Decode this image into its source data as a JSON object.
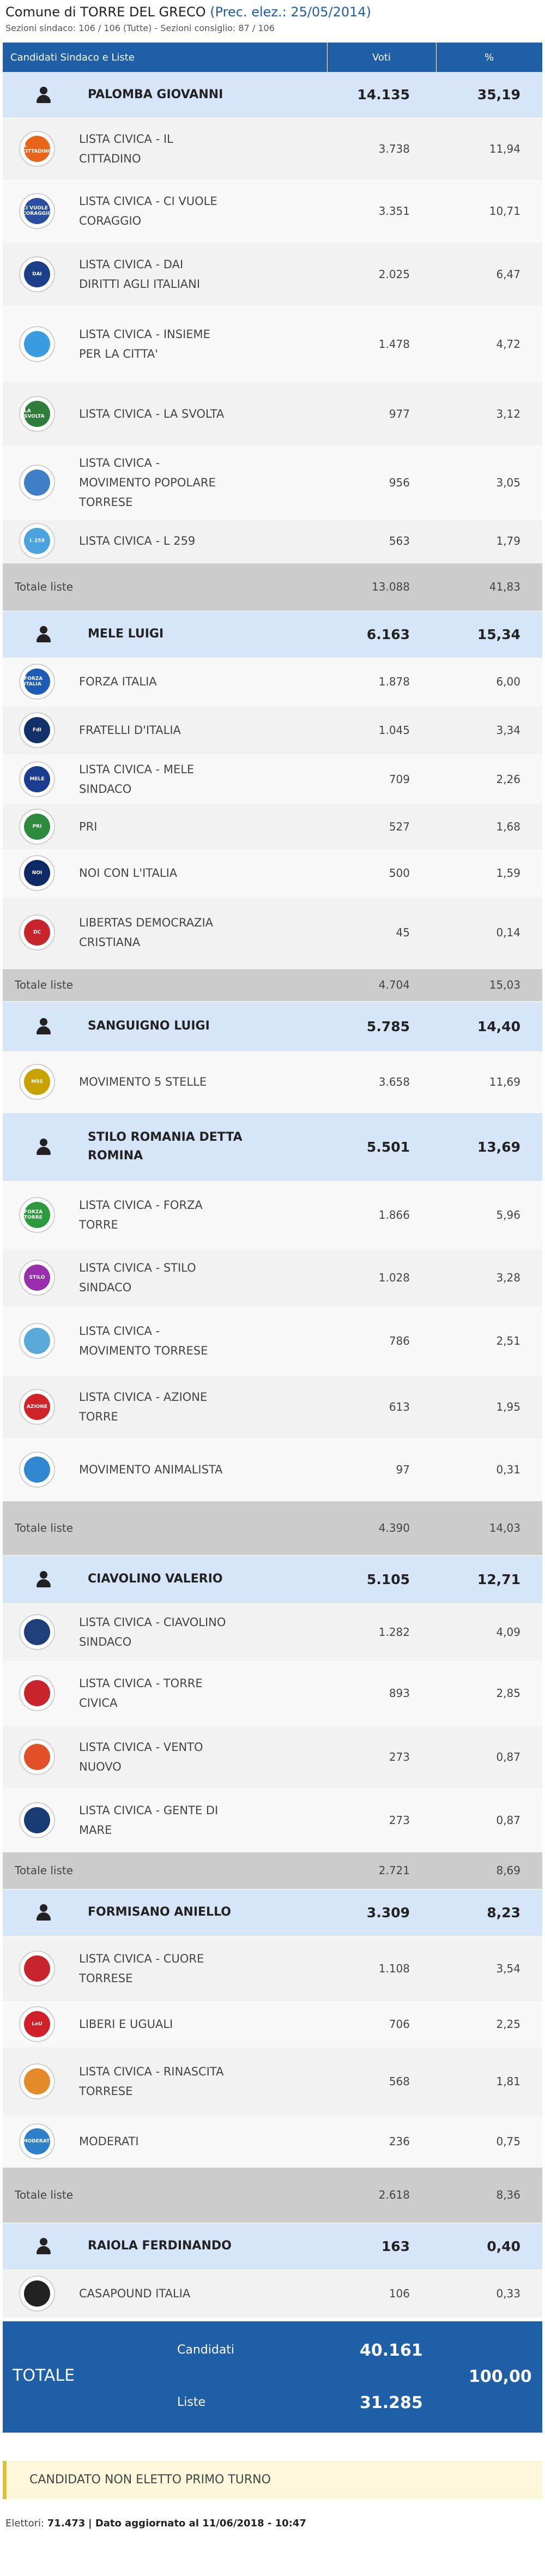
{
  "header": {
    "title_prefix": "Comune di TORRE DEL GRECO",
    "prec_link": "(Prec. elez.: 25/05/2014)",
    "sezioni": "Sezioni sindaco: 106 / 106 (Tutte) - Sezioni consiglio: 87 / 106"
  },
  "table": {
    "col_candidati": "Candidati Sindaco e Liste",
    "col_voti": "Voti",
    "col_pct": "%"
  },
  "groups": [
    {
      "candidate": {
        "name": "PALOMBA GIOVANNI",
        "votes": "14.135",
        "pct": "35,19"
      },
      "lists": [
        {
          "name": "LISTA CIVICA - IL CITTADINO",
          "votes": "3.738",
          "pct": "11,94",
          "logo_text": "IL CITTADINO",
          "color": "#e8641b"
        },
        {
          "name": "LISTA CIVICA - CI VUOLE CORAGGIO",
          "votes": "3.351",
          "pct": "10,71",
          "logo_text": "CI VUOLE CORAGGIO",
          "color": "#2a4fa0"
        },
        {
          "name": "LISTA CIVICA - DAI DIRITTI AGLI ITALIANI",
          "votes": "2.025",
          "pct": "6,47",
          "logo_text": "DAI",
          "color": "#1c3f8a"
        },
        {
          "name": "LISTA CIVICA - INSIEME PER LA CITTA'",
          "votes": "1.478",
          "pct": "4,72",
          "logo_text": "",
          "color": "#3a9be0"
        },
        {
          "name": "LISTA CIVICA - LA SVOLTA",
          "votes": "977",
          "pct": "3,12",
          "logo_text": "LA SVOLTA",
          "color": "#2f7d3a"
        },
        {
          "name": "LISTA CIVICA - MOVIMENTO POPOLARE TORRESE",
          "votes": "956",
          "pct": "3,05",
          "logo_text": "",
          "color": "#3f7fc8"
        },
        {
          "name": "LISTA CIVICA - L 259",
          "votes": "563",
          "pct": "1,79",
          "logo_text": "L 259",
          "color": "#4aa3df"
        }
      ],
      "total": {
        "label": "Totale liste",
        "votes": "13.088",
        "pct": "41,83"
      }
    },
    {
      "candidate": {
        "name": "MELE LUIGI",
        "votes": "6.163",
        "pct": "15,34"
      },
      "lists": [
        {
          "name": "FORZA ITALIA",
          "votes": "1.878",
          "pct": "6,00",
          "logo_text": "FORZA ITALIA",
          "color": "#1d5bb5"
        },
        {
          "name": "FRATELLI D'ITALIA",
          "votes": "1.045",
          "pct": "3,34",
          "logo_text": "FdI",
          "color": "#13306b"
        },
        {
          "name": "LISTA CIVICA - MELE SINDACO",
          "votes": "709",
          "pct": "2,26",
          "logo_text": "MELE",
          "color": "#1a3d8f"
        },
        {
          "name": "PRI",
          "votes": "527",
          "pct": "1,68",
          "logo_text": "PRI",
          "color": "#2e8b3e"
        },
        {
          "name": "NOI CON L'ITALIA",
          "votes": "500",
          "pct": "1,59",
          "logo_text": "NOI",
          "color": "#0d2a66"
        },
        {
          "name": "LIBERTAS DEMOCRAZIA CRISTIANA",
          "votes": "45",
          "pct": "0,14",
          "logo_text": "DC",
          "color": "#c8242b"
        }
      ],
      "total": {
        "label": "Totale liste",
        "votes": "4.704",
        "pct": "15,03"
      }
    },
    {
      "candidate": {
        "name": "SANGUIGNO LUIGI",
        "votes": "5.785",
        "pct": "14,40"
      },
      "lists": [
        {
          "name": "MOVIMENTO 5 STELLE",
          "votes": "3.658",
          "pct": "11,69",
          "logo_text": "M5S",
          "color": "#c9a100"
        }
      ],
      "total": null
    },
    {
      "candidate": {
        "name": "STILO ROMANIA DETTA ROMINA",
        "votes": "5.501",
        "pct": "13,69"
      },
      "lists": [
        {
          "name": "LISTA CIVICA - FORZA TORRE",
          "votes": "1.866",
          "pct": "5,96",
          "logo_text": "FORZA TORRE",
          "color": "#2b9a3c"
        },
        {
          "name": "LISTA CIVICA - STILO SINDACO",
          "votes": "1.028",
          "pct": "3,28",
          "logo_text": "STILO",
          "color": "#9a2fae"
        },
        {
          "name": "LISTA CIVICA - MOVIMENTO TORRESE",
          "votes": "786",
          "pct": "2,51",
          "logo_text": "",
          "color": "#58a8d8"
        },
        {
          "name": "LISTA CIVICA - AZIONE TORRE",
          "votes": "613",
          "pct": "1,95",
          "logo_text": "AZIONE",
          "color": "#d1232a"
        },
        {
          "name": "MOVIMENTO ANIMALISTA",
          "votes": "97",
          "pct": "0,31",
          "logo_text": "",
          "color": "#2f88d0"
        }
      ],
      "total": {
        "label": "Totale liste",
        "votes": "4.390",
        "pct": "14,03"
      }
    },
    {
      "candidate": {
        "name": "CIAVOLINO VALERIO",
        "votes": "5.105",
        "pct": "12,71"
      },
      "lists": [
        {
          "name": "LISTA CIVICA - CIAVOLINO SINDACO",
          "votes": "1.282",
          "pct": "4,09",
          "logo_text": "",
          "color": "#1f3f7a"
        },
        {
          "name": "LISTA CIVICA - TORRE CIVICA",
          "votes": "893",
          "pct": "2,85",
          "logo_text": "",
          "color": "#c8242b"
        },
        {
          "name": "LISTA CIVICA - VENTO NUOVO",
          "votes": "273",
          "pct": "0,87",
          "logo_text": "",
          "color": "#e2502a"
        },
        {
          "name": "LISTA CIVICA - GENTE DI MARE",
          "votes": "273",
          "pct": "0,87",
          "logo_text": "",
          "color": "#173b73"
        }
      ],
      "total": {
        "label": "Totale liste",
        "votes": "2.721",
        "pct": "8,69"
      }
    },
    {
      "candidate": {
        "name": "FORMISANO ANIELLO",
        "votes": "3.309",
        "pct": "8,23"
      },
      "lists": [
        {
          "name": "LISTA CIVICA - CUORE TORRESE",
          "votes": "1.108",
          "pct": "3,54",
          "logo_text": "",
          "color": "#c8242b"
        },
        {
          "name": "LIBERI E UGUALI",
          "votes": "706",
          "pct": "2,25",
          "logo_text": "LeU",
          "color": "#d0202a"
        },
        {
          "name": "LISTA CIVICA - RINASCITA TORRESE",
          "votes": "568",
          "pct": "1,81",
          "logo_text": "",
          "color": "#e58a2a"
        },
        {
          "name": "MODERATI",
          "votes": "236",
          "pct": "0,75",
          "logo_text": "MODERATI",
          "color": "#2e7fc9"
        }
      ],
      "total": {
        "label": "Totale liste",
        "votes": "2.618",
        "pct": "8,36"
      }
    },
    {
      "candidate": {
        "name": "RAIOLA FERDINANDO",
        "votes": "163",
        "pct": "0,40"
      },
      "lists": [
        {
          "name": "CASAPOUND ITALIA",
          "votes": "106",
          "pct": "0,33",
          "logo_text": "",
          "color": "#222222"
        }
      ],
      "total": null
    }
  ],
  "grand_total": {
    "label": "TOTALE",
    "candidati_label": "Candidati",
    "candidati_votes": "40.161",
    "liste_label": "Liste",
    "liste_votes": "31.285",
    "pct": "100,00"
  },
  "notice": "CANDIDATO NON ELETTO PRIMO TURNO",
  "footer": {
    "elettori_label": "Elettori:",
    "elettori_value": "71.473",
    "dato": "| Dato aggiornato al 11/06/2018 - 10:47"
  },
  "icons": {
    "candidate": "person-icon"
  },
  "colors": {
    "header_blue": "#1f5fa8",
    "candidate_row": "#d6e6f8",
    "total_row": "#cccccc",
    "notice_border": "#e3c12a"
  }
}
